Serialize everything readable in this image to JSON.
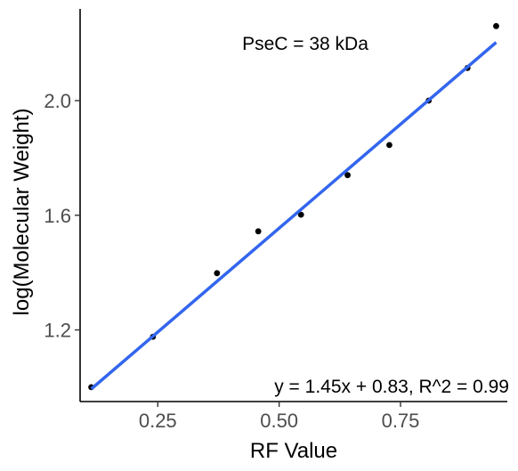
{
  "chart_data": {
    "type": "scatter",
    "xlabel": "RF Value",
    "ylabel": "log(Molecular Weight)",
    "xlim": [
      0.09,
      0.97
    ],
    "ylim": [
      0.95,
      2.32
    ],
    "x_ticks": [
      0.25,
      0.5,
      0.75
    ],
    "x_tick_labels": [
      "0.25",
      "0.50",
      "0.75"
    ],
    "y_ticks": [
      1.2,
      1.6,
      2.0
    ],
    "y_tick_labels": [
      "1.2",
      "1.6",
      "2.0"
    ],
    "grid": false,
    "points": [
      {
        "x": 0.113,
        "y": 1.0
      },
      {
        "x": 0.24,
        "y": 1.176
      },
      {
        "x": 0.372,
        "y": 1.398
      },
      {
        "x": 0.457,
        "y": 1.544
      },
      {
        "x": 0.545,
        "y": 1.602
      },
      {
        "x": 0.641,
        "y": 1.74
      },
      {
        "x": 0.727,
        "y": 1.845
      },
      {
        "x": 0.808,
        "y": 2.0
      },
      {
        "x": 0.888,
        "y": 2.114
      },
      {
        "x": 0.947,
        "y": 2.26
      }
    ],
    "fit": {
      "slope": 1.45,
      "intercept": 0.83,
      "x_range": [
        0.113,
        0.947
      ],
      "color": "#3366ee"
    },
    "point_color": "#000000",
    "annotations": {
      "title_note": "PseC = 38 kDa",
      "equation": "y = 1.45x + 0.83, R^2 = 0.99"
    }
  }
}
